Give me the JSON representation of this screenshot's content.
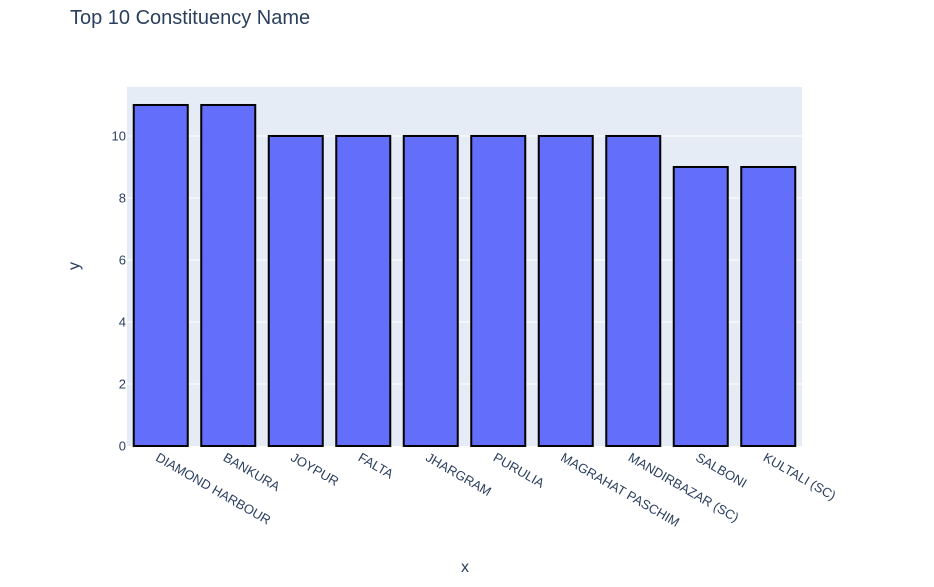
{
  "chart_data": {
    "type": "bar",
    "title": "Top 10 Constituency Name",
    "xlabel": "x",
    "ylabel": "y",
    "categories": [
      "DIAMOND HARBOUR",
      "BANKURA",
      "JOYPUR",
      "FALTA",
      "JHARGRAM",
      "PURULIA",
      "MAGRAHAT PASCHIM",
      "MANDIRBAZAR (SC)",
      "SALBONI",
      "KULTALI (SC)"
    ],
    "values": [
      11,
      11,
      10,
      10,
      10,
      10,
      10,
      10,
      9,
      9
    ],
    "ylim": [
      0,
      11.58
    ],
    "yticks": [
      0,
      2,
      4,
      6,
      8,
      10
    ],
    "grid": true,
    "colors": {
      "bar": "#636efa",
      "bar_outline": "#000000",
      "plot_bg": "#e5ecf6",
      "grid": "#ffffff",
      "text": "#2a3f5f"
    }
  }
}
